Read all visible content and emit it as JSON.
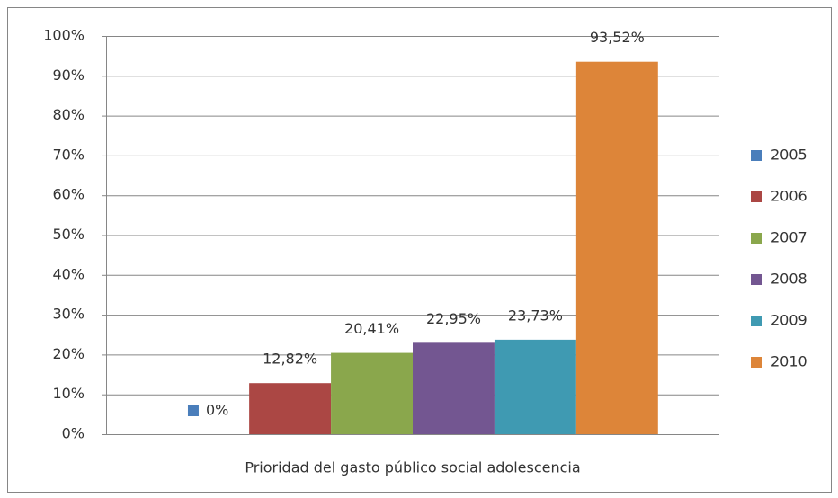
{
  "chart_data": {
    "type": "bar",
    "categories": [
      "Prioridad del gasto público social adolescencia"
    ],
    "series": [
      {
        "name": "2005",
        "color": "#4a7ebb",
        "values": [
          0
        ],
        "value_labels": [
          "0%"
        ]
      },
      {
        "name": "2006",
        "color": "#ab4744",
        "values": [
          12.82
        ],
        "value_labels": [
          "12,82%"
        ]
      },
      {
        "name": "2007",
        "color": "#8aa74c",
        "values": [
          20.41
        ],
        "value_labels": [
          "20,41%"
        ]
      },
      {
        "name": "2008",
        "color": "#735691",
        "values": [
          22.95
        ],
        "value_labels": [
          "22,95%"
        ]
      },
      {
        "name": "2009",
        "color": "#3f9ab2",
        "values": [
          23.73
        ],
        "value_labels": [
          "23,73%"
        ]
      },
      {
        "name": "2010",
        "color": "#dd8539",
        "values": [
          93.52
        ],
        "value_labels": [
          "93,52%"
        ]
      }
    ],
    "ylim": [
      0,
      100
    ],
    "yticks": [
      {
        "value": 0,
        "label": "0%"
      },
      {
        "value": 10,
        "label": "10%"
      },
      {
        "value": 20,
        "label": "20%"
      },
      {
        "value": 30,
        "label": "30%"
      },
      {
        "value": 40,
        "label": "40%"
      },
      {
        "value": 50,
        "label": "50%"
      },
      {
        "value": 60,
        "label": "60%"
      },
      {
        "value": 70,
        "label": "70%"
      },
      {
        "value": 80,
        "label": "80%"
      },
      {
        "value": 90,
        "label": "90%"
      },
      {
        "value": 100,
        "label": "100%"
      }
    ],
    "grid": true,
    "legend": "right"
  }
}
